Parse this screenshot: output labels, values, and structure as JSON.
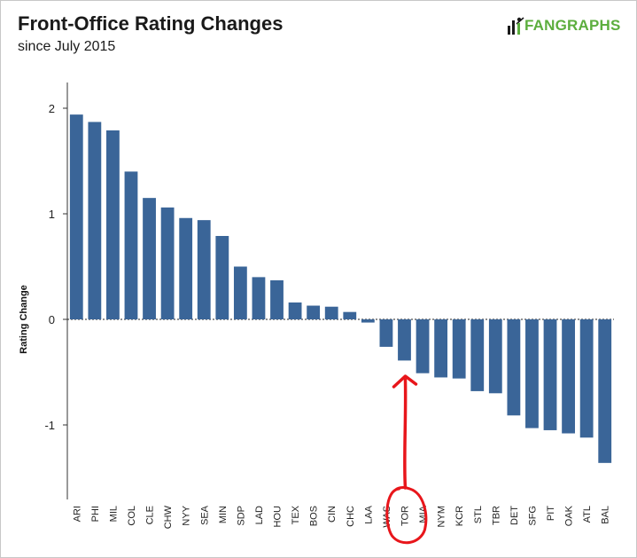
{
  "header": {
    "title": "Front-Office Rating Changes",
    "subtitle": "since July 2015",
    "logo_text": "FANGRAPHS",
    "logo_color": "#5cae3e"
  },
  "chart_data": {
    "type": "bar",
    "title": "Front-Office Rating Changes",
    "subtitle": "since July 2015",
    "xlabel": "",
    "ylabel": "Rating Change",
    "ylim": [
      -1.6,
      2.1
    ],
    "yticks": [
      -1,
      0,
      1,
      2
    ],
    "bar_color": "#3a6598",
    "zero_line": "dashed",
    "categories": [
      "ARI",
      "PHI",
      "MIL",
      "COL",
      "CLE",
      "CHW",
      "NYY",
      "SEA",
      "MIN",
      "SDP",
      "LAD",
      "HOU",
      "TEX",
      "BOS",
      "CIN",
      "CHC",
      "LAA",
      "WAS",
      "TOR",
      "MIA",
      "NYM",
      "KCR",
      "STL",
      "TBR",
      "DET",
      "SFG",
      "PIT",
      "OAK",
      "ATL",
      "BAL"
    ],
    "values": [
      1.94,
      1.87,
      1.79,
      1.4,
      1.15,
      1.06,
      0.96,
      0.94,
      0.79,
      0.5,
      0.4,
      0.37,
      0.16,
      0.13,
      0.12,
      0.07,
      -0.03,
      -0.26,
      -0.39,
      -0.51,
      -0.55,
      -0.56,
      -0.68,
      -0.7,
      -0.91,
      -1.03,
      -1.05,
      -1.08,
      -1.12,
      -1.36
    ],
    "annotation": {
      "type": "hand-drawn arrow and circle",
      "target_category": "TOR",
      "color": "#e8161b"
    }
  }
}
